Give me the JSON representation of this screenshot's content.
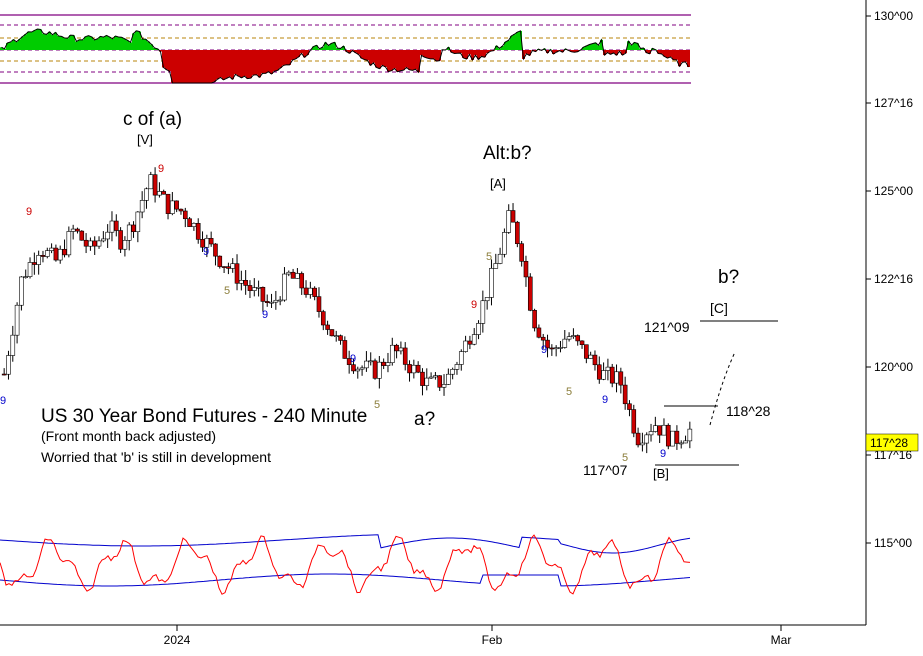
{
  "title": "US 30 Year Bond Futures - 240 Minute",
  "subtitle": "(Front month back adjusted)",
  "note": "Worried that 'b' is still in development",
  "colors": {
    "up_candle": "#ffffff",
    "down_candle": "#cc0000",
    "oscillator_up": "#00cc00",
    "oscillator_down": "#cc0000",
    "rsi": "#ff0000",
    "bands": "#0000cc",
    "price_marker_bg": "#ffff00"
  },
  "current_price_label": "117^28",
  "chart_data": {
    "type": "candlestick",
    "y_axis_ticks": [
      "130^00",
      "127^16",
      "125^00",
      "122^16",
      "120^00",
      "117^16",
      "115^00"
    ],
    "x_axis_ticks": [
      "2024",
      "Feb",
      "Mar"
    ],
    "wave_labels": [
      "c of (a)",
      "[V]",
      "Alt:b?",
      "[A]",
      "a?",
      "b?",
      "[C]",
      "[B]"
    ],
    "price_levels": [
      {
        "label": "121^09"
      },
      {
        "label": "118^28"
      },
      {
        "label": "117^07"
      }
    ],
    "close_path": [
      [
        "1.0",
        119.8
      ],
      [
        "2.5",
        122.5
      ],
      [
        "4",
        123.4
      ],
      [
        "5.5",
        123.0
      ],
      [
        "7",
        123.9
      ],
      [
        "8.5",
        123.3
      ],
      [
        "10",
        124.0
      ],
      [
        "11",
        123.6
      ],
      [
        "12",
        124.0
      ],
      [
        "13.5",
        125.3
      ],
      [
        "15",
        124.6
      ],
      [
        "16.5",
        124.4
      ],
      [
        "18",
        123.7
      ],
      [
        "19.5",
        123.1
      ],
      [
        "21",
        122.6
      ],
      [
        "22.5",
        122.1
      ],
      [
        "24",
        121.7
      ],
      [
        "25.5",
        122.6
      ],
      [
        "27",
        122.2
      ],
      [
        "28.5",
        121.4
      ],
      [
        "30",
        120.5
      ],
      [
        "31.5",
        120.0
      ],
      [
        "33",
        119.9
      ],
      [
        "34.5",
        120.5
      ],
      [
        "36",
        120.0
      ],
      [
        "37.5",
        119.5
      ],
      [
        "39",
        119.6
      ],
      [
        "40.5",
        120.5
      ],
      [
        "42",
        121.6
      ],
      [
        "43.5",
        123.1
      ],
      [
        "44.5",
        124.3
      ],
      [
        "45.5",
        123.3
      ],
      [
        "46.5",
        121.4
      ],
      [
        "48",
        120.4
      ],
      [
        "49.5",
        120.9
      ],
      [
        "51",
        120.4
      ],
      [
        "52.5",
        119.8
      ],
      [
        "54",
        119.6
      ],
      [
        "55.5",
        118.0
      ],
      [
        "57",
        118.4
      ],
      [
        "58.5",
        117.9
      ],
      [
        "60",
        118.2
      ]
    ]
  }
}
